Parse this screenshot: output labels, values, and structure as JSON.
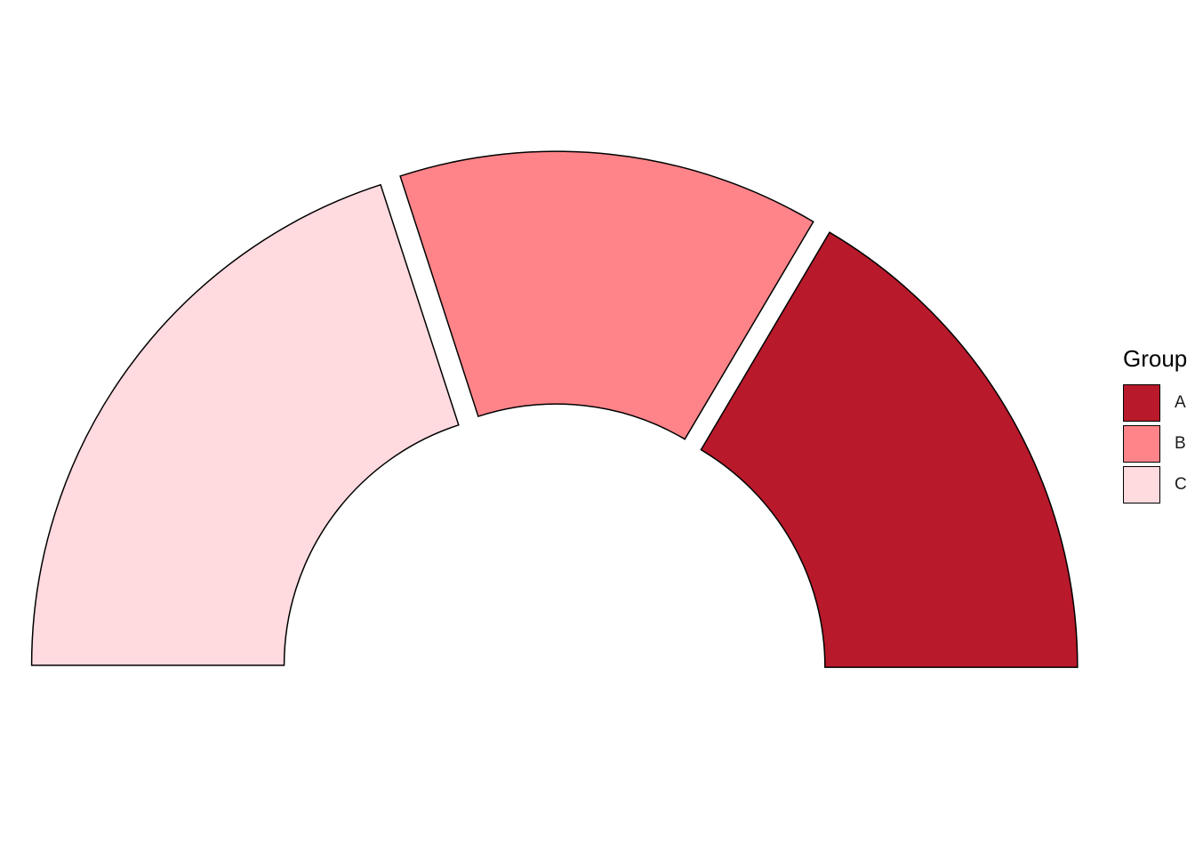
{
  "chart_data": {
    "type": "pie",
    "variant": "half-donut",
    "exploded": true,
    "categories": [
      "A",
      "B",
      "C"
    ],
    "values": [
      33,
      27,
      40
    ],
    "colors": [
      "#B8192B",
      "#FF8489",
      "#FFDADF"
    ],
    "legend": {
      "title": "Group",
      "placement": "right"
    }
  }
}
